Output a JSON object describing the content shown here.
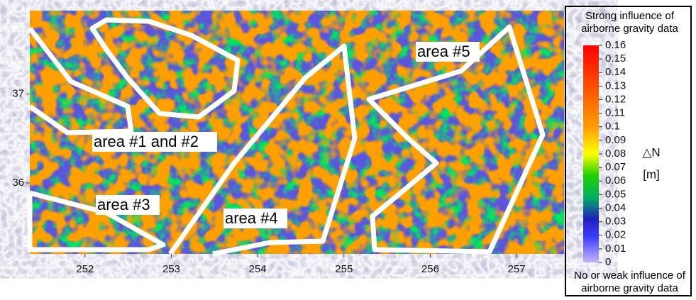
{
  "map": {
    "x_axis": {
      "lim": [
        251.36,
        257.55
      ],
      "ticks": [
        252,
        253,
        254,
        255,
        256,
        257
      ]
    },
    "y_axis": {
      "lim": [
        35.2,
        37.94
      ],
      "ticks": [
        36,
        37
      ]
    },
    "areas": [
      {
        "label": "area #1 and #2"
      },
      {
        "label": "area #3"
      },
      {
        "label": "area #4"
      },
      {
        "label": "area #5"
      }
    ]
  },
  "colorbar": {
    "title_top": "Strong influence of airborne gravity data",
    "title_bottom": "No or weak influence of airborne gravity data",
    "quantity": "△N",
    "unit": "[m]",
    "lim": [
      0,
      0.16
    ],
    "ticks": [
      0,
      0.01,
      0.02,
      0.03,
      0.04,
      0.05,
      0.06,
      0.07,
      0.08,
      0.09,
      0.1,
      0.11,
      0.12,
      0.13,
      0.14,
      0.15,
      0.16
    ]
  }
}
